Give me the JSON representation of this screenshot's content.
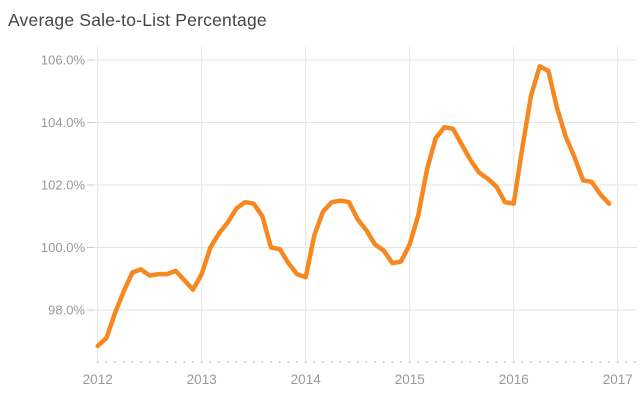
{
  "chart_data": {
    "type": "line",
    "title": "Average Sale-to-List Percentage",
    "xlabel": "",
    "ylabel": "",
    "legend": "none",
    "grid": "both",
    "x_tick_labels": [
      "2012",
      "2013",
      "2014",
      "2015",
      "2016",
      "2017"
    ],
    "y_tick_labels": [
      "106.0%",
      "104.0%",
      "102.0%",
      "100.0%",
      "98.0%"
    ],
    "y_tick_values": [
      106,
      104,
      102,
      100,
      98
    ],
    "ylim": [
      96.3,
      106.4
    ],
    "x_unit": "month",
    "x_range": "Jan 2012 - Dec 2016",
    "minor_x_ticks": "monthly-dots",
    "series": [
      {
        "name": "Average Sale-to-List Percentage",
        "start_year": 2012,
        "points_per_year": 12,
        "values": [
          96.85,
          97.1,
          97.9,
          98.6,
          99.2,
          99.3,
          99.1,
          99.15,
          99.15,
          99.25,
          98.95,
          98.65,
          99.15,
          100.0,
          100.45,
          100.8,
          101.25,
          101.45,
          101.4,
          101.0,
          100.0,
          99.95,
          99.5,
          99.15,
          99.05,
          100.4,
          101.15,
          101.45,
          101.5,
          101.45,
          100.9,
          100.55,
          100.1,
          99.9,
          99.5,
          99.55,
          100.1,
          101.05,
          102.5,
          103.5,
          103.85,
          103.8,
          103.3,
          102.8,
          102.4,
          102.2,
          101.95,
          101.45,
          101.4,
          103.2,
          104.85,
          105.8,
          105.65,
          104.45,
          103.55,
          102.9,
          102.15,
          102.1,
          101.7,
          101.4
        ]
      }
    ],
    "colors": {
      "line": "#F6881F",
      "grid": "#e5e5e5",
      "tick": "#cccccc",
      "axis_label": "#98999b",
      "title": "#454549",
      "background": "#ffffff"
    }
  }
}
